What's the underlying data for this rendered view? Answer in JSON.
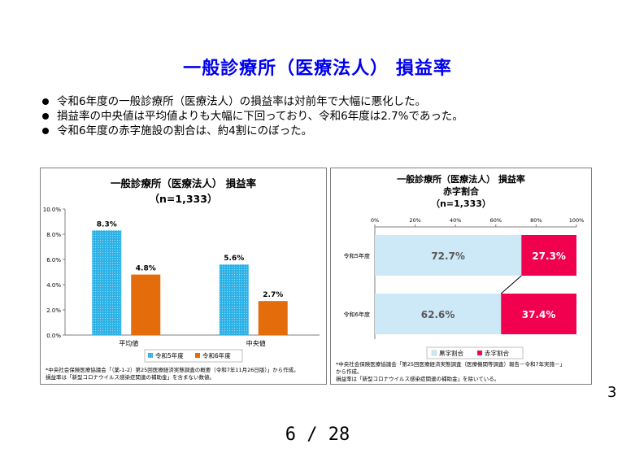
{
  "page": {
    "title": "一般診療所（医療法人） 損益率",
    "bullets": [
      "令和6年度の一般診療所（医療法人）の損益率は対前年で大幅に悪化した。",
      "損益率の中央値は平均値よりも大幅に下回っており、令和6年度は2.7%であった。",
      "令和6年度の赤字施設の割合は、約4割にのぼった。"
    ],
    "page_number": "3",
    "page_indicator": "6 / 28"
  },
  "panel1": {
    "title": "一般診療所（医療法人） 損益率",
    "subtitle": "（n=1,333）",
    "note_lines": [
      "*中央社会保険医療協議会「（薬-1-2）第25回医療経済実態調査の概要（令和7年11月26日版）」から作成。",
      "損益率は「新型コロナウイルス感染症関連の補助金」を含まない数値。"
    ]
  },
  "panel2": {
    "title_lines": [
      "一般診療所（医療法人） 損益率",
      "赤字割合",
      "（n=1,333）"
    ],
    "note_lines": [
      "*中央社会保険医療協議会「第25回医療経済実態調査（医療機関等調査）報告－令和7年実施－」",
      "から作成。",
      "損益率は「新型コロナウイルス感染症関連の補助金」を除いている。"
    ]
  },
  "colors": {
    "title_blue": "#0000ee",
    "r5_blue": "#2cb1e6",
    "r6_orange": "#e46c0a",
    "black_share": "#cde8f6",
    "red_share": "#f0004f"
  },
  "chart_data": [
    {
      "type": "bar",
      "title": "一般診療所（医療法人） 損益率",
      "subtitle": "（n=1,333）",
      "categories": [
        "平均値",
        "中央値"
      ],
      "series": [
        {
          "name": "令和5年度",
          "values": [
            8.3,
            5.6
          ],
          "labels": [
            "8.3%",
            "5.6%"
          ]
        },
        {
          "name": "令和6年度",
          "values": [
            4.8,
            2.7
          ],
          "labels": [
            "4.8%",
            "2.7%"
          ]
        }
      ],
      "ylim": [
        0,
        10
      ],
      "yticks": [
        "0.0%",
        "2.0%",
        "4.0%",
        "6.0%",
        "8.0%",
        "10.0%"
      ],
      "legend": "bottom",
      "grid": false
    },
    {
      "type": "bar",
      "orientation": "horizontal-stacked-percent",
      "title": "一般診療所（医療法人） 損益率 赤字割合",
      "subtitle": "（n=1,333）",
      "categories": [
        "令和5年度",
        "令和6年度"
      ],
      "series": [
        {
          "name": "黒字割合",
          "values": [
            72.7,
            62.6
          ],
          "labels": [
            "72.7%",
            "62.6%"
          ]
        },
        {
          "name": "赤字割合",
          "values": [
            27.3,
            37.4
          ],
          "labels": [
            "27.3%",
            "37.4%"
          ]
        }
      ],
      "xlim": [
        0,
        100
      ],
      "xticks": [
        "0%",
        "20%",
        "40%",
        "60%",
        "80%",
        "100%"
      ],
      "legend": "bottom",
      "grid": false
    }
  ]
}
